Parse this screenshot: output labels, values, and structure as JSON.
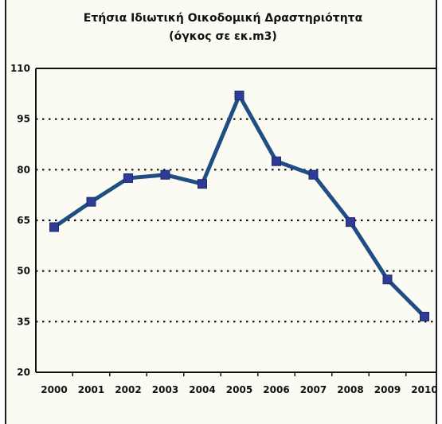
{
  "chart_data": {
    "type": "line",
    "title": "Ετήσια Ιδιωτική Οικοδομική Δραστηριότητα",
    "subtitle": "(όγκος σε εκ.m3)",
    "xlabel": "",
    "ylabel": "",
    "categories": [
      "2000",
      "2001",
      "2002",
      "2003",
      "2004",
      "2005",
      "2006",
      "2007",
      "2008",
      "2009",
      "2010"
    ],
    "series": [
      {
        "values": [
          63,
          70.5,
          77.5,
          78.5,
          75.8,
          102,
          82.5,
          78.5,
          64.5,
          47.5,
          36.5
        ]
      }
    ],
    "ylim": [
      20,
      110
    ],
    "yticks": [
      "20",
      "35",
      "50",
      "65",
      "80",
      "95",
      "110"
    ],
    "grid": "horizontal dotted",
    "legend": "none",
    "colors": {
      "line": "#1f4e85",
      "marker": "#2f3c97",
      "grid": "#111111",
      "background": "#fbfaf3"
    }
  }
}
